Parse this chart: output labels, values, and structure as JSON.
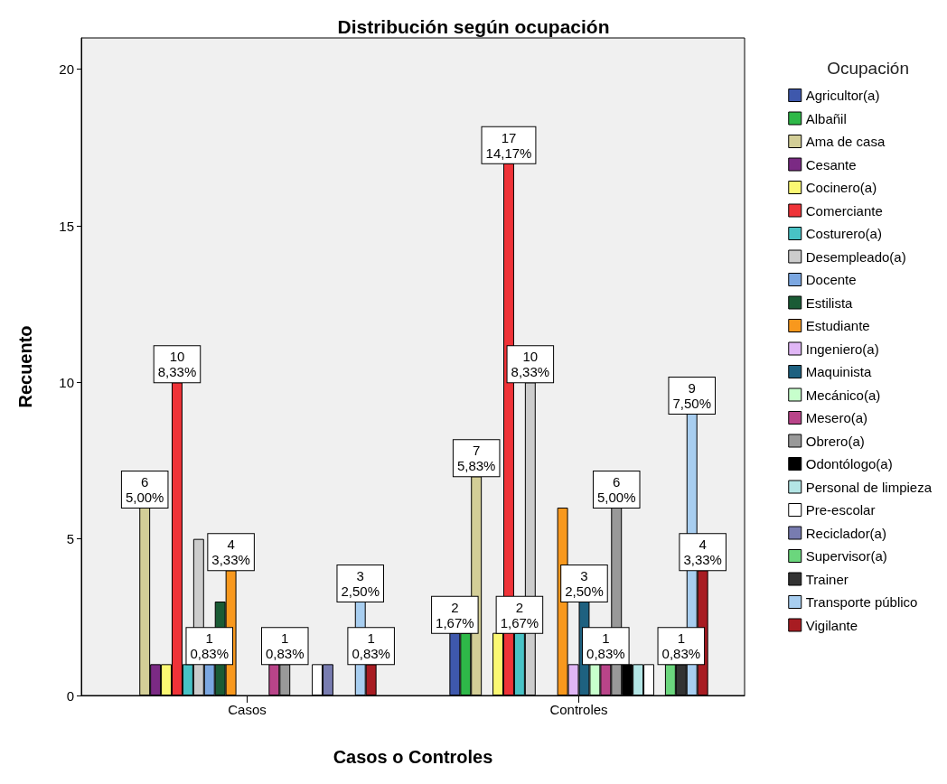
{
  "chart_data": {
    "type": "bar",
    "title": "Distribución según ocupación",
    "xlabel": "Casos o Controles",
    "ylabel": "Recuento",
    "legend_title": "Ocupación",
    "legend": "right",
    "grid": false,
    "categories": [
      "Casos",
      "Controles"
    ],
    "ylim": [
      0,
      21
    ],
    "yticks": [
      0,
      5,
      10,
      15,
      20
    ],
    "series": [
      {
        "name": "Agricultor(a)",
        "color": "#3e58ac",
        "values": [
          null,
          2
        ],
        "value_labels": [
          null,
          "2\n1,67%"
        ]
      },
      {
        "name": "Albañil",
        "color": "#2eb848",
        "values": [
          null,
          2
        ],
        "value_labels": [
          null,
          null
        ]
      },
      {
        "name": "Ama de casa",
        "color": "#d3ce97",
        "values": [
          6,
          7
        ],
        "value_labels": [
          "6\n5,00%",
          "7\n5,83%"
        ]
      },
      {
        "name": "Cesante",
        "color": "#7b2a84",
        "values": [
          1,
          null
        ],
        "value_labels": [
          null,
          null
        ]
      },
      {
        "name": "Cocinero(a)",
        "color": "#fbf873",
        "values": [
          1,
          2
        ],
        "value_labels": [
          null,
          null
        ]
      },
      {
        "name": "Comerciante",
        "color": "#ef3338",
        "values": [
          10,
          17
        ],
        "value_labels": [
          "10\n8,33%",
          "17\n14,17%"
        ]
      },
      {
        "name": "Costurero(a)",
        "color": "#48c2c5",
        "values": [
          1,
          2
        ],
        "value_labels": [
          null,
          "2\n1,67%"
        ]
      },
      {
        "name": "Desempleado(a)",
        "color": "#cccccc",
        "values": [
          5,
          10
        ],
        "value_labels": [
          null,
          "10\n8,33%"
        ]
      },
      {
        "name": "Docente",
        "color": "#7ba7e1",
        "values": [
          1,
          null
        ],
        "value_labels": [
          "1\n0,83%",
          null
        ]
      },
      {
        "name": "Estilista",
        "color": "#1a5b35",
        "values": [
          3,
          null
        ],
        "value_labels": [
          null,
          null
        ]
      },
      {
        "name": "Estudiante",
        "color": "#f8981d",
        "values": [
          4,
          6
        ],
        "value_labels": [
          "4\n3,33%",
          null
        ]
      },
      {
        "name": "Ingeniero(a)",
        "color": "#e0b6f5",
        "values": [
          null,
          1
        ],
        "value_labels": [
          null,
          null
        ]
      },
      {
        "name": "Maquinista",
        "color": "#1e6180",
        "values": [
          null,
          3
        ],
        "value_labels": [
          null,
          "3\n2,50%"
        ]
      },
      {
        "name": "Mecánico(a)",
        "color": "#c7ffcc",
        "values": [
          null,
          1
        ],
        "value_labels": [
          null,
          null
        ]
      },
      {
        "name": "Mesero(a)",
        "color": "#b94489",
        "values": [
          1,
          1
        ],
        "value_labels": [
          null,
          "1\n0,83%"
        ]
      },
      {
        "name": "Obrero(a)",
        "color": "#999999",
        "values": [
          1,
          6
        ],
        "value_labels": [
          "1\n0,83%",
          "6\n5,00%"
        ]
      },
      {
        "name": "Odontólogo(a)",
        "color": "#000000",
        "values": [
          null,
          1
        ],
        "value_labels": [
          null,
          null
        ]
      },
      {
        "name": "Personal de limpieza",
        "color": "#b3e5e5",
        "values": [
          null,
          1
        ],
        "value_labels": [
          null,
          null
        ]
      },
      {
        "name": "Pre-escolar",
        "color": "#ffffff",
        "values": [
          1,
          1
        ],
        "value_labels": [
          null,
          null
        ]
      },
      {
        "name": "Reciclador(a)",
        "color": "#787cb0",
        "values": [
          1,
          null
        ],
        "value_labels": [
          null,
          null
        ]
      },
      {
        "name": "Supervisor(a)",
        "color": "#6bd67d",
        "values": [
          null,
          1
        ],
        "value_labels": [
          null,
          null
        ]
      },
      {
        "name": "Trainer",
        "color": "#333333",
        "values": [
          null,
          1
        ],
        "value_labels": [
          null,
          "1\n0,83%"
        ]
      },
      {
        "name": "Transporte público",
        "color": "#a8cef0",
        "values": [
          3,
          9
        ],
        "value_labels": [
          "3\n2,50%",
          "9\n7,50%"
        ]
      },
      {
        "name": "Vigilante",
        "color": "#a81c22",
        "values": [
          1,
          4
        ],
        "value_labels": [
          "1\n0,83%",
          "4\n3,33%"
        ]
      }
    ]
  }
}
